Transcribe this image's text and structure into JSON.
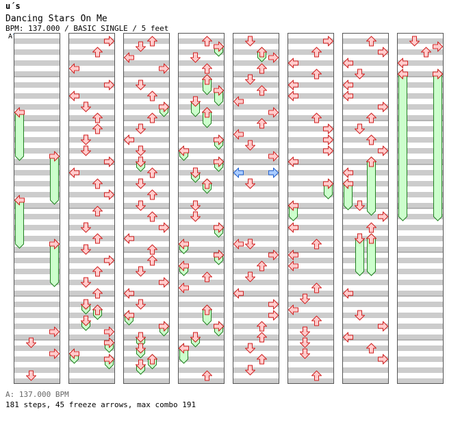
{
  "header": {
    "artist": "u´s",
    "title": "Dancing Stars On Me",
    "info": "BPM: 137.000 / BASIC SINGLE / 5 feet",
    "marker": "A"
  },
  "footer": {
    "bpm_note": "A: 137.000 BPM",
    "stats": "181 steps, 45 freeze arrows, max combo 191"
  },
  "colors": {
    "stripe": "#cccccc",
    "measure_line": "#888888",
    "arrow_fill": "#ffcccc",
    "arrow_stroke": "#d02020",
    "freeze_fill": "#ccffcc",
    "freeze_stroke": "#208020",
    "mine_fill": "#aaccff",
    "mine_stroke": "#2060d0"
  },
  "chart_data": {
    "type": "step-chart",
    "bpm": 137.0,
    "difficulty": "BASIC SINGLE",
    "feet": 5,
    "lanes": [
      "left",
      "down",
      "up",
      "right"
    ],
    "columns": 8,
    "measures_per_column": 8,
    "rows_per_measure": 8,
    "notes": [
      {
        "c": 0,
        "r": 14,
        "lane": "left",
        "kind": "freeze",
        "len": 8
      },
      {
        "c": 0,
        "r": 22,
        "lane": "right",
        "kind": "freeze",
        "len": 8
      },
      {
        "c": 0,
        "r": 30,
        "lane": "left",
        "kind": "freeze",
        "len": 8
      },
      {
        "c": 0,
        "r": 38,
        "lane": "right",
        "kind": "freeze",
        "len": 7
      },
      {
        "c": 0,
        "r": 54,
        "lane": "right",
        "kind": "tap"
      },
      {
        "c": 0,
        "r": 56,
        "lane": "down",
        "kind": "tap"
      },
      {
        "c": 0,
        "r": 58,
        "lane": "right",
        "kind": "tap"
      },
      {
        "c": 0,
        "r": 62,
        "lane": "down",
        "kind": "tap"
      },
      {
        "c": 1,
        "r": 1,
        "lane": "right",
        "kind": "tap"
      },
      {
        "c": 1,
        "r": 3,
        "lane": "up",
        "kind": "tap"
      },
      {
        "c": 1,
        "r": 6,
        "lane": "left",
        "kind": "tap"
      },
      {
        "c": 1,
        "r": 9,
        "lane": "right",
        "kind": "tap"
      },
      {
        "c": 1,
        "r": 11,
        "lane": "left",
        "kind": "tap"
      },
      {
        "c": 1,
        "r": 13,
        "lane": "down",
        "kind": "tap"
      },
      {
        "c": 1,
        "r": 15,
        "lane": "up",
        "kind": "tap"
      },
      {
        "c": 1,
        "r": 17,
        "lane": "up",
        "kind": "tap"
      },
      {
        "c": 1,
        "r": 19,
        "lane": "down",
        "kind": "tap"
      },
      {
        "c": 1,
        "r": 21,
        "lane": "down",
        "kind": "tap"
      },
      {
        "c": 1,
        "r": 23,
        "lane": "right",
        "kind": "tap"
      },
      {
        "c": 1,
        "r": 25,
        "lane": "left",
        "kind": "tap"
      },
      {
        "c": 1,
        "r": 27,
        "lane": "up",
        "kind": "tap"
      },
      {
        "c": 1,
        "r": 29,
        "lane": "right",
        "kind": "tap"
      },
      {
        "c": 1,
        "r": 32,
        "lane": "up",
        "kind": "tap"
      },
      {
        "c": 1,
        "r": 35,
        "lane": "down",
        "kind": "tap"
      },
      {
        "c": 1,
        "r": 37,
        "lane": "up",
        "kind": "tap"
      },
      {
        "c": 1,
        "r": 39,
        "lane": "down",
        "kind": "tap"
      },
      {
        "c": 1,
        "r": 41,
        "lane": "right",
        "kind": "tap"
      },
      {
        "c": 1,
        "r": 43,
        "lane": "up",
        "kind": "tap"
      },
      {
        "c": 1,
        "r": 45,
        "lane": "down",
        "kind": "tap"
      },
      {
        "c": 1,
        "r": 47,
        "lane": "up",
        "kind": "tap"
      },
      {
        "c": 1,
        "r": 49,
        "lane": "down",
        "kind": "freeze",
        "len": 1
      },
      {
        "c": 1,
        "r": 50,
        "lane": "up",
        "kind": "freeze",
        "len": 1
      },
      {
        "c": 1,
        "r": 52,
        "lane": "down",
        "kind": "freeze",
        "len": 1
      },
      {
        "c": 1,
        "r": 54,
        "lane": "right",
        "kind": "tap"
      },
      {
        "c": 1,
        "r": 56,
        "lane": "right",
        "kind": "freeze",
        "len": 1
      },
      {
        "c": 1,
        "r": 58,
        "lane": "left",
        "kind": "freeze",
        "len": 1
      },
      {
        "c": 1,
        "r": 59,
        "lane": "right",
        "kind": "freeze",
        "len": 1
      },
      {
        "c": 2,
        "r": 1,
        "lane": "up",
        "kind": "tap"
      },
      {
        "c": 2,
        "r": 2,
        "lane": "down",
        "kind": "tap"
      },
      {
        "c": 2,
        "r": 4,
        "lane": "left",
        "kind": "tap"
      },
      {
        "c": 2,
        "r": 6,
        "lane": "right",
        "kind": "tap"
      },
      {
        "c": 2,
        "r": 9,
        "lane": "down",
        "kind": "tap"
      },
      {
        "c": 2,
        "r": 11,
        "lane": "up",
        "kind": "tap"
      },
      {
        "c": 2,
        "r": 13,
        "lane": "right",
        "kind": "freeze",
        "len": 1
      },
      {
        "c": 2,
        "r": 15,
        "lane": "up",
        "kind": "tap"
      },
      {
        "c": 2,
        "r": 17,
        "lane": "down",
        "kind": "tap"
      },
      {
        "c": 2,
        "r": 19,
        "lane": "left",
        "kind": "tap"
      },
      {
        "c": 2,
        "r": 21,
        "lane": "down",
        "kind": "tap"
      },
      {
        "c": 2,
        "r": 23,
        "lane": "down",
        "kind": "freeze",
        "len": 1
      },
      {
        "c": 2,
        "r": 25,
        "lane": "up",
        "kind": "tap"
      },
      {
        "c": 2,
        "r": 27,
        "lane": "down",
        "kind": "tap"
      },
      {
        "c": 2,
        "r": 29,
        "lane": "up",
        "kind": "tap"
      },
      {
        "c": 2,
        "r": 31,
        "lane": "down",
        "kind": "tap"
      },
      {
        "c": 2,
        "r": 33,
        "lane": "up",
        "kind": "tap"
      },
      {
        "c": 2,
        "r": 35,
        "lane": "right",
        "kind": "tap"
      },
      {
        "c": 2,
        "r": 37,
        "lane": "left",
        "kind": "tap"
      },
      {
        "c": 2,
        "r": 39,
        "lane": "up",
        "kind": "tap"
      },
      {
        "c": 2,
        "r": 41,
        "lane": "up",
        "kind": "tap"
      },
      {
        "c": 2,
        "r": 43,
        "lane": "down",
        "kind": "tap"
      },
      {
        "c": 2,
        "r": 45,
        "lane": "right",
        "kind": "tap"
      },
      {
        "c": 2,
        "r": 47,
        "lane": "left",
        "kind": "tap"
      },
      {
        "c": 2,
        "r": 49,
        "lane": "down",
        "kind": "tap"
      },
      {
        "c": 2,
        "r": 51,
        "lane": "left",
        "kind": "freeze",
        "len": 1
      },
      {
        "c": 2,
        "r": 53,
        "lane": "right",
        "kind": "freeze",
        "len": 1
      },
      {
        "c": 2,
        "r": 55,
        "lane": "down",
        "kind": "freeze",
        "len": 1
      },
      {
        "c": 2,
        "r": 57,
        "lane": "down",
        "kind": "freeze",
        "len": 1
      },
      {
        "c": 2,
        "r": 59,
        "lane": "up",
        "kind": "freeze",
        "len": 1
      },
      {
        "c": 2,
        "r": 60,
        "lane": "down",
        "kind": "freeze",
        "len": 1
      },
      {
        "c": 3,
        "r": 1,
        "lane": "up",
        "kind": "tap"
      },
      {
        "c": 3,
        "r": 2,
        "lane": "right",
        "kind": "freeze",
        "len": 1
      },
      {
        "c": 3,
        "r": 4,
        "lane": "down",
        "kind": "tap"
      },
      {
        "c": 3,
        "r": 6,
        "lane": "up",
        "kind": "tap"
      },
      {
        "c": 3,
        "r": 8,
        "lane": "up",
        "kind": "freeze",
        "len": 2
      },
      {
        "c": 3,
        "r": 10,
        "lane": "right",
        "kind": "freeze",
        "len": 2
      },
      {
        "c": 3,
        "r": 12,
        "lane": "down",
        "kind": "freeze",
        "len": 2
      },
      {
        "c": 3,
        "r": 14,
        "lane": "up",
        "kind": "freeze",
        "len": 2
      },
      {
        "c": 3,
        "r": 19,
        "lane": "right",
        "kind": "freeze",
        "len": 1
      },
      {
        "c": 3,
        "r": 21,
        "lane": "left",
        "kind": "freeze",
        "len": 1
      },
      {
        "c": 3,
        "r": 23,
        "lane": "right",
        "kind": "freeze",
        "len": 1
      },
      {
        "c": 3,
        "r": 25,
        "lane": "down",
        "kind": "freeze",
        "len": 1
      },
      {
        "c": 3,
        "r": 27,
        "lane": "up",
        "kind": "freeze",
        "len": 1
      },
      {
        "c": 3,
        "r": 31,
        "lane": "down",
        "kind": "tap"
      },
      {
        "c": 3,
        "r": 33,
        "lane": "down",
        "kind": "tap"
      },
      {
        "c": 3,
        "r": 35,
        "lane": "right",
        "kind": "freeze",
        "len": 1
      },
      {
        "c": 3,
        "r": 38,
        "lane": "left",
        "kind": "freeze",
        "len": 1
      },
      {
        "c": 3,
        "r": 40,
        "lane": "right",
        "kind": "freeze",
        "len": 1
      },
      {
        "c": 3,
        "r": 42,
        "lane": "left",
        "kind": "freeze",
        "len": 1
      },
      {
        "c": 3,
        "r": 44,
        "lane": "up",
        "kind": "tap"
      },
      {
        "c": 3,
        "r": 46,
        "lane": "left",
        "kind": "tap"
      },
      {
        "c": 3,
        "r": 50,
        "lane": "up",
        "kind": "freeze",
        "len": 2
      },
      {
        "c": 3,
        "r": 53,
        "lane": "right",
        "kind": "freeze",
        "len": 1
      },
      {
        "c": 3,
        "r": 55,
        "lane": "down",
        "kind": "freeze",
        "len": 1
      },
      {
        "c": 3,
        "r": 57,
        "lane": "left",
        "kind": "freeze",
        "len": 2
      },
      {
        "c": 3,
        "r": 62,
        "lane": "up",
        "kind": "tap"
      },
      {
        "c": 4,
        "r": 1,
        "lane": "down",
        "kind": "tap"
      },
      {
        "c": 4,
        "r": 3,
        "lane": "up",
        "kind": "freeze",
        "len": 1
      },
      {
        "c": 4,
        "r": 4,
        "lane": "right",
        "kind": "tap"
      },
      {
        "c": 4,
        "r": 6,
        "lane": "up",
        "kind": "tap"
      },
      {
        "c": 4,
        "r": 8,
        "lane": "down",
        "kind": "tap"
      },
      {
        "c": 4,
        "r": 10,
        "lane": "up",
        "kind": "tap"
      },
      {
        "c": 4,
        "r": 12,
        "lane": "left",
        "kind": "tap"
      },
      {
        "c": 4,
        "r": 14,
        "lane": "right",
        "kind": "tap"
      },
      {
        "c": 4,
        "r": 16,
        "lane": "up",
        "kind": "tap"
      },
      {
        "c": 4,
        "r": 18,
        "lane": "left",
        "kind": "tap"
      },
      {
        "c": 4,
        "r": 20,
        "lane": "down",
        "kind": "tap"
      },
      {
        "c": 4,
        "r": 22,
        "lane": "right",
        "kind": "tap"
      },
      {
        "c": 4,
        "r": 25,
        "lane": "left",
        "kind": "mine"
      },
      {
        "c": 4,
        "r": 25,
        "lane": "right",
        "kind": "mine"
      },
      {
        "c": 4,
        "r": 27,
        "lane": "down",
        "kind": "tap"
      },
      {
        "c": 4,
        "r": 38,
        "lane": "left",
        "kind": "tap"
      },
      {
        "c": 4,
        "r": 38,
        "lane": "down",
        "kind": "tap"
      },
      {
        "c": 4,
        "r": 40,
        "lane": "right",
        "kind": "tap"
      },
      {
        "c": 4,
        "r": 42,
        "lane": "up",
        "kind": "tap"
      },
      {
        "c": 4,
        "r": 44,
        "lane": "down",
        "kind": "tap"
      },
      {
        "c": 4,
        "r": 47,
        "lane": "left",
        "kind": "tap"
      },
      {
        "c": 4,
        "r": 49,
        "lane": "right",
        "kind": "tap"
      },
      {
        "c": 4,
        "r": 51,
        "lane": "right",
        "kind": "tap"
      },
      {
        "c": 4,
        "r": 53,
        "lane": "up",
        "kind": "tap"
      },
      {
        "c": 4,
        "r": 55,
        "lane": "up",
        "kind": "tap"
      },
      {
        "c": 4,
        "r": 57,
        "lane": "down",
        "kind": "tap"
      },
      {
        "c": 4,
        "r": 59,
        "lane": "up",
        "kind": "tap"
      },
      {
        "c": 4,
        "r": 61,
        "lane": "down",
        "kind": "tap"
      },
      {
        "c": 5,
        "r": 1,
        "lane": "right",
        "kind": "tap"
      },
      {
        "c": 5,
        "r": 3,
        "lane": "up",
        "kind": "tap"
      },
      {
        "c": 5,
        "r": 5,
        "lane": "left",
        "kind": "tap"
      },
      {
        "c": 5,
        "r": 7,
        "lane": "up",
        "kind": "tap"
      },
      {
        "c": 5,
        "r": 9,
        "lane": "left",
        "kind": "tap"
      },
      {
        "c": 5,
        "r": 11,
        "lane": "left",
        "kind": "tap"
      },
      {
        "c": 5,
        "r": 15,
        "lane": "up",
        "kind": "tap"
      },
      {
        "c": 5,
        "r": 17,
        "lane": "right",
        "kind": "tap"
      },
      {
        "c": 5,
        "r": 19,
        "lane": "right",
        "kind": "tap"
      },
      {
        "c": 5,
        "r": 21,
        "lane": "right",
        "kind": "tap"
      },
      {
        "c": 5,
        "r": 23,
        "lane": "left",
        "kind": "tap"
      },
      {
        "c": 5,
        "r": 27,
        "lane": "right",
        "kind": "freeze",
        "len": 2
      },
      {
        "c": 5,
        "r": 31,
        "lane": "left",
        "kind": "freeze",
        "len": 2
      },
      {
        "c": 5,
        "r": 35,
        "lane": "left",
        "kind": "tap"
      },
      {
        "c": 5,
        "r": 38,
        "lane": "up",
        "kind": "tap"
      },
      {
        "c": 5,
        "r": 40,
        "lane": "left",
        "kind": "tap"
      },
      {
        "c": 5,
        "r": 42,
        "lane": "left",
        "kind": "tap"
      },
      {
        "c": 5,
        "r": 46,
        "lane": "up",
        "kind": "tap"
      },
      {
        "c": 5,
        "r": 48,
        "lane": "down",
        "kind": "tap"
      },
      {
        "c": 5,
        "r": 50,
        "lane": "left",
        "kind": "tap"
      },
      {
        "c": 5,
        "r": 52,
        "lane": "up",
        "kind": "tap"
      },
      {
        "c": 5,
        "r": 54,
        "lane": "down",
        "kind": "tap"
      },
      {
        "c": 5,
        "r": 56,
        "lane": "down",
        "kind": "tap"
      },
      {
        "c": 5,
        "r": 58,
        "lane": "down",
        "kind": "tap"
      },
      {
        "c": 5,
        "r": 62,
        "lane": "up",
        "kind": "tap"
      },
      {
        "c": 6,
        "r": 1,
        "lane": "up",
        "kind": "tap"
      },
      {
        "c": 6,
        "r": 3,
        "lane": "right",
        "kind": "tap"
      },
      {
        "c": 6,
        "r": 5,
        "lane": "left",
        "kind": "tap"
      },
      {
        "c": 6,
        "r": 7,
        "lane": "down",
        "kind": "tap"
      },
      {
        "c": 6,
        "r": 9,
        "lane": "left",
        "kind": "tap"
      },
      {
        "c": 6,
        "r": 11,
        "lane": "left",
        "kind": "tap"
      },
      {
        "c": 6,
        "r": 13,
        "lane": "right",
        "kind": "tap"
      },
      {
        "c": 6,
        "r": 15,
        "lane": "up",
        "kind": "tap"
      },
      {
        "c": 6,
        "r": 17,
        "lane": "down",
        "kind": "tap"
      },
      {
        "c": 6,
        "r": 19,
        "lane": "up",
        "kind": "tap"
      },
      {
        "c": 6,
        "r": 21,
        "lane": "right",
        "kind": "tap"
      },
      {
        "c": 6,
        "r": 23,
        "lane": "up",
        "kind": "freeze",
        "len": 9
      },
      {
        "c": 6,
        "r": 25,
        "lane": "left",
        "kind": "tap"
      },
      {
        "c": 6,
        "r": 27,
        "lane": "left",
        "kind": "freeze",
        "len": 4
      },
      {
        "c": 6,
        "r": 31,
        "lane": "down",
        "kind": "tap"
      },
      {
        "c": 6,
        "r": 33,
        "lane": "right",
        "kind": "tap"
      },
      {
        "c": 6,
        "r": 35,
        "lane": "up",
        "kind": "tap"
      },
      {
        "c": 6,
        "r": 37,
        "lane": "down",
        "kind": "freeze",
        "len": 6
      },
      {
        "c": 6,
        "r": 37,
        "lane": "up",
        "kind": "freeze",
        "len": 6
      },
      {
        "c": 6,
        "r": 47,
        "lane": "left",
        "kind": "tap"
      },
      {
        "c": 6,
        "r": 51,
        "lane": "down",
        "kind": "tap"
      },
      {
        "c": 6,
        "r": 53,
        "lane": "right",
        "kind": "tap"
      },
      {
        "c": 6,
        "r": 55,
        "lane": "left",
        "kind": "tap"
      },
      {
        "c": 6,
        "r": 57,
        "lane": "up",
        "kind": "tap"
      },
      {
        "c": 6,
        "r": 59,
        "lane": "right",
        "kind": "tap"
      },
      {
        "c": 7,
        "r": 1,
        "lane": "down",
        "kind": "tap"
      },
      {
        "c": 7,
        "r": 2,
        "lane": "right",
        "kind": "tap"
      },
      {
        "c": 7,
        "r": 3,
        "lane": "up",
        "kind": "tap"
      },
      {
        "c": 7,
        "r": 5,
        "lane": "left",
        "kind": "tap"
      },
      {
        "c": 7,
        "r": 7,
        "lane": "left",
        "kind": "freeze",
        "len": 26
      },
      {
        "c": 7,
        "r": 7,
        "lane": "right",
        "kind": "freeze",
        "len": 26
      }
    ]
  }
}
